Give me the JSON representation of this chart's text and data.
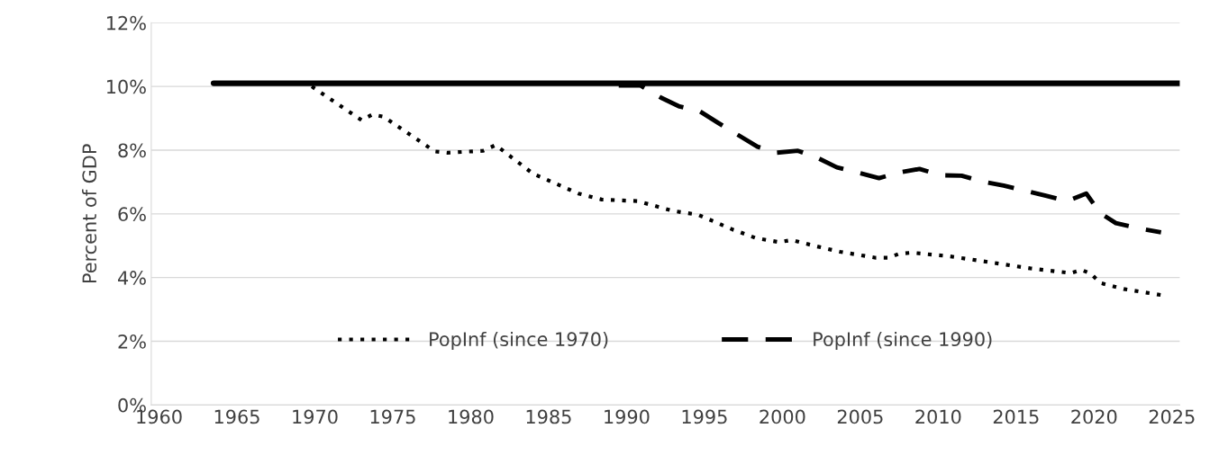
{
  "chart_data": {
    "type": "line",
    "ylabel": "Percent of GDP",
    "xlim": [
      1959.5,
      2025.5
    ],
    "xticks": [
      1960,
      1965,
      1970,
      1975,
      1980,
      1985,
      1990,
      1995,
      2000,
      2005,
      2010,
      2015,
      2020,
      2025
    ],
    "ylim": [
      0,
      12
    ],
    "yticks": [
      {
        "value": 0,
        "label": "0%"
      },
      {
        "value": 2,
        "label": "2%"
      },
      {
        "value": 4,
        "label": "4%"
      },
      {
        "value": 6,
        "label": "6%"
      },
      {
        "value": 8,
        "label": "8%"
      },
      {
        "value": 10,
        "label": "10%"
      },
      {
        "value": 12,
        "label": "12%"
      }
    ],
    "grid": "y",
    "legend": "bottom",
    "marker": "none",
    "series": [
      {
        "color": "#000000",
        "line_style": "solid",
        "x": [
          1963.5,
          2025.5
        ],
        "values": [
          10.1,
          10.1
        ]
      },
      {
        "name": "PopInf (since 1970)",
        "color": "#000000",
        "line_style": "dotted",
        "x": [
          1969.8,
          1973.0,
          1973.7,
          1974.4,
          1977.7,
          1978.5,
          1980.8,
          1981.6,
          1984.0,
          1986.9,
          1988.4,
          1990.7,
          1993.0,
          1994.6,
          1996.8,
          1998.3,
          1999.8,
          2000.6,
          2002.1,
          2003.7,
          2006.0,
          2006.8,
          2007.5,
          2008.3,
          2010.7,
          2013.6,
          2015.9,
          2018.5,
          2019.2,
          2019.8,
          2020.4,
          2021.9,
          2024.3
        ],
        "values": [
          10.0,
          8.94,
          9.12,
          9.05,
          7.96,
          7.92,
          7.98,
          8.16,
          7.26,
          6.64,
          6.45,
          6.4,
          6.09,
          5.97,
          5.51,
          5.24,
          5.11,
          5.18,
          4.99,
          4.81,
          4.62,
          4.62,
          4.75,
          4.78,
          4.67,
          4.46,
          4.29,
          4.14,
          4.24,
          4.12,
          3.83,
          3.64,
          3.45
        ]
      },
      {
        "name": "PopInf (since 1990)",
        "color": "#000000",
        "line_style": "dashed",
        "x": [
          1989.5,
          1990.9,
          1992.2,
          1993.4,
          1994.7,
          1995.9,
          1998.4,
          1999.6,
          2001.0,
          2002.2,
          2003.5,
          2004.9,
          2006.2,
          2007.4,
          2008.8,
          2010.2,
          2011.5,
          2012.8,
          2014.2,
          2016.9,
          2018.3,
          2019.5,
          2020.4,
          2021.4,
          2022.9,
          2024.3
        ],
        "values": [
          10.03,
          10.03,
          9.65,
          9.37,
          9.22,
          8.85,
          8.11,
          7.92,
          7.98,
          7.77,
          7.46,
          7.29,
          7.12,
          7.29,
          7.41,
          7.21,
          7.2,
          7.02,
          6.89,
          6.57,
          6.4,
          6.64,
          6.02,
          5.71,
          5.54,
          5.42
        ]
      }
    ]
  }
}
